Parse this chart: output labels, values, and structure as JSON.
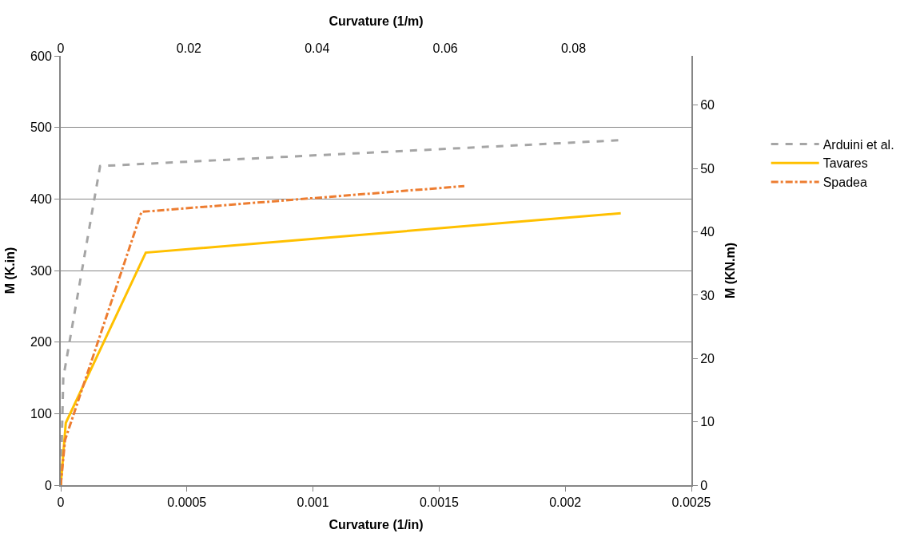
{
  "chart_data": {
    "type": "line",
    "xlabel": "Curvature (1/in)",
    "ylabel": "M (K.in)",
    "y2label": "M (KN.m)",
    "x2label": "Curvature (1/m)",
    "xlim": [
      0,
      0.0025
    ],
    "xticks": [
      0,
      0.0005,
      0.001,
      0.0015,
      0.002,
      0.0025
    ],
    "x2lim": [
      0,
      0.0984
    ],
    "x2ticks": [
      0,
      0.02,
      0.04,
      0.06,
      0.08
    ],
    "ylim": [
      0,
      600
    ],
    "yticks": [
      0,
      100,
      200,
      300,
      400,
      500,
      600
    ],
    "y2lim": [
      0,
      67.8
    ],
    "y2ticks": [
      0,
      10,
      20,
      30,
      40,
      50,
      60
    ],
    "grid": "y",
    "legend": "right",
    "marker": "none",
    "series": [
      {
        "name": "Arduini et al.",
        "color": "#a5a5a5",
        "line_style": "dashed",
        "x": [
          0,
          1e-05,
          0.000156,
          0.00221
        ],
        "values": [
          0,
          150,
          446,
          482
        ]
      },
      {
        "name": "Tavares",
        "color": "#ffc000",
        "line_style": "solid",
        "x": [
          0,
          2e-05,
          0.000337,
          0.00222
        ],
        "values": [
          0,
          87,
          325,
          380
        ]
      },
      {
        "name": "Spadea",
        "color": "#ed7d31",
        "line_style": "dashdot",
        "x": [
          0,
          1.7e-05,
          0.00032,
          0.0016
        ],
        "values": [
          0,
          63,
          382,
          418
        ]
      }
    ]
  }
}
